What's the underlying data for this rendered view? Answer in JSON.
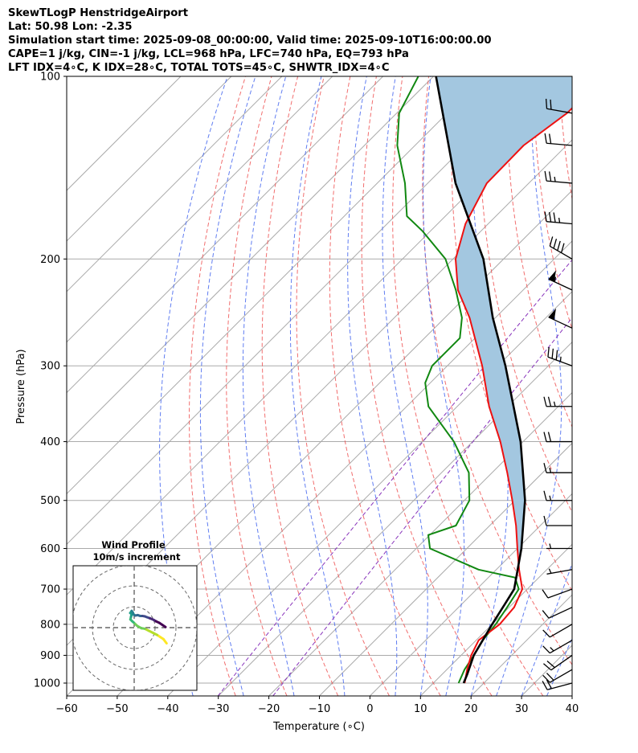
{
  "header": {
    "line1": "SkewTLogP HenstridgeAirport",
    "line2": "Lat: 50.98   Lon: -2.35",
    "line3": "Simulation start time: 2025-09-08_00:00:00, Valid time: 2025-09-10T16:00:00.00",
    "line4": "CAPE=1 j/kg, CIN=-1 j/kg, LCL=968 hPa, LFC=740 hPa, EQ=793 hPa",
    "line5": "LFT IDX=4∘C, K IDX=28∘C, TOTAL TOTS=45∘C, SHWTR_IDX=4∘C"
  },
  "colors": {
    "temperature": "#ee1111",
    "dewpoint": "#118811",
    "parcel": "#000000",
    "cape_fill": "#a3c7e0",
    "dry_adiabat": "#ee5555",
    "moist_adiabat": "#4466ee",
    "mixing_ratio": "#8833bb",
    "isotherm": "#aaaaaa"
  },
  "chart_data": {
    "type": "skewt",
    "xlabel": "Temperature (∘C)",
    "ylabel": "Pressure (hPa)",
    "xlim": [
      -60,
      40
    ],
    "ylim": [
      1050,
      100
    ],
    "x_ticks": [
      "−60",
      "−50",
      "−40",
      "−30",
      "−20",
      "−10",
      "0",
      "10",
      "20",
      "30",
      "40"
    ],
    "y_ticks": [
      "100",
      "200",
      "300",
      "400",
      "500",
      "600",
      "700",
      "800",
      "900",
      "1000"
    ],
    "temperature": {
      "name": "Temperature",
      "p": [
        1000,
        950,
        900,
        850,
        800,
        750,
        700,
        650,
        600,
        550,
        500,
        450,
        400,
        350,
        300,
        250,
        225,
        200,
        175,
        150,
        130,
        115,
        100
      ],
      "t": [
        16.2,
        14.0,
        12.0,
        10.5,
        11.5,
        11.0,
        9.0,
        4.5,
        0.0,
        -4.8,
        -10.5,
        -17.0,
        -24.5,
        -33.7,
        -43.1,
        -55.1,
        -62.9,
        -69.5,
        -74.5,
        -78.3,
        -78.5,
        -76.3,
        -76.0
      ]
    },
    "dewpoint": {
      "name": "Dewpoint",
      "p": [
        1000,
        950,
        900,
        850,
        800,
        750,
        700,
        670,
        650,
        600,
        570,
        550,
        500,
        450,
        400,
        350,
        320,
        300,
        270,
        250,
        225,
        200,
        180,
        170,
        150,
        130,
        115,
        100
      ],
      "td": [
        15.0,
        13.5,
        12.5,
        11.3,
        10.7,
        9.6,
        8.3,
        5.3,
        -3.5,
        -17.3,
        -20.3,
        -16.7,
        -19.0,
        -24.6,
        -33.7,
        -45.7,
        -51.0,
        -53.0,
        -53.0,
        -56.6,
        -63.3,
        -71.5,
        -81.5,
        -87.6,
        -94.5,
        -103.5,
        -109.5,
        -113.0
      ]
    },
    "parcel": {
      "name": "Parcel",
      "p": [
        1000,
        968,
        900,
        800,
        740,
        700,
        600,
        500,
        400,
        300,
        250,
        200,
        150,
        100
      ],
      "t": [
        16.0,
        15.0,
        12.5,
        10.0,
        8.5,
        7.4,
        0.8,
        -8.0,
        -20.5,
        -38.5,
        -50.5,
        -64.0,
        -84.5,
        -109.5
      ]
    },
    "cape_shading": {
      "label": "CAPE/CIN area",
      "p_top": 100,
      "p_bottom": 650
    },
    "wind_barbs": [
      {
        "p": 1000,
        "speed_kt": 20,
        "dir_deg": 255
      },
      {
        "p": 950,
        "speed_kt": 20,
        "dir_deg": 240
      },
      {
        "p": 900,
        "speed_kt": 20,
        "dir_deg": 235
      },
      {
        "p": 850,
        "speed_kt": 15,
        "dir_deg": 240
      },
      {
        "p": 800,
        "speed_kt": 10,
        "dir_deg": 240
      },
      {
        "p": 750,
        "speed_kt": 10,
        "dir_deg": 245
      },
      {
        "p": 700,
        "speed_kt": 10,
        "dir_deg": 250
      },
      {
        "p": 650,
        "speed_kt": 5,
        "dir_deg": 260
      },
      {
        "p": 600,
        "speed_kt": 5,
        "dir_deg": 270
      },
      {
        "p": 550,
        "speed_kt": 10,
        "dir_deg": 270
      },
      {
        "p": 500,
        "speed_kt": 15,
        "dir_deg": 270
      },
      {
        "p": 450,
        "speed_kt": 15,
        "dir_deg": 270
      },
      {
        "p": 400,
        "speed_kt": 20,
        "dir_deg": 270
      },
      {
        "p": 350,
        "speed_kt": 25,
        "dir_deg": 270
      },
      {
        "p": 300,
        "speed_kt": 35,
        "dir_deg": 290
      },
      {
        "p": 260,
        "speed_kt": 50,
        "dir_deg": 295
      },
      {
        "p": 225,
        "speed_kt": 55,
        "dir_deg": 295
      },
      {
        "p": 200,
        "speed_kt": 40,
        "dir_deg": 300
      },
      {
        "p": 175,
        "speed_kt": 35,
        "dir_deg": 275
      },
      {
        "p": 150,
        "speed_kt": 25,
        "dir_deg": 275
      },
      {
        "p": 130,
        "speed_kt": 20,
        "dir_deg": 275
      },
      {
        "p": 115,
        "speed_kt": 20,
        "dir_deg": 280
      }
    ],
    "hodograph": {
      "title": "Wind Profile",
      "subtitle": "10m/s increment",
      "ring_increment_ms": 10,
      "u": [
        15.5,
        14.0,
        12.5,
        11.0,
        9.0,
        7.0,
        5.0,
        3.5,
        1.5,
        -0.3,
        -1.0,
        -1.8,
        -1.5,
        -1.2,
        -1.9,
        -1.2,
        -0.7,
        -0.2,
        0.6,
        1.7,
        2.9,
        3.9,
        5.1,
        6.1,
        7.5,
        8.5,
        9.5,
        10.5,
        12.0,
        13.5,
        15.0
      ],
      "v": [
        -7.5,
        -5.5,
        -4.5,
        -3.5,
        -2.5,
        -1.5,
        -0.5,
        -0.3,
        0.8,
        2.5,
        3.1,
        3.9,
        5.3,
        6.5,
        7.0,
        8.0,
        7.3,
        6.2,
        5.8,
        6.0,
        5.6,
        5.6,
        5.4,
        5.0,
        4.5,
        4.1,
        3.6,
        3.0,
        2.3,
        1.3,
        0.3
      ]
    }
  }
}
